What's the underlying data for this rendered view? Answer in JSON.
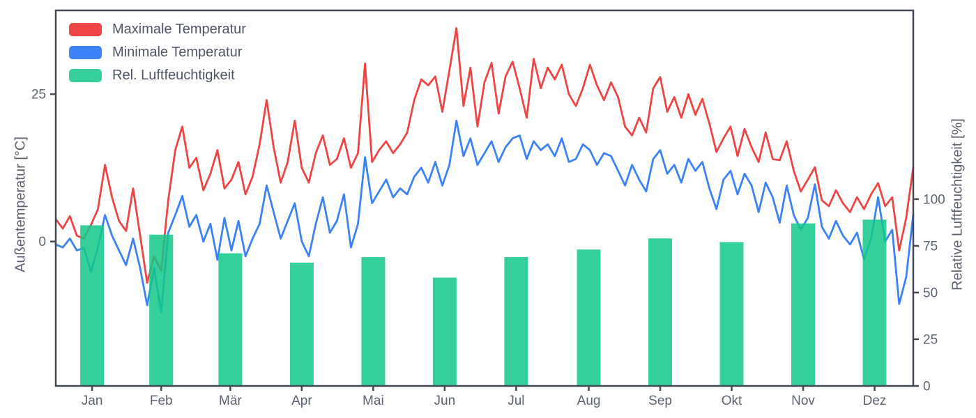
{
  "chart_data": {
    "type": "line+bar",
    "title": "",
    "legend_position": "upper-left",
    "grid": false,
    "months": [
      "Jan",
      "Feb",
      "Mär",
      "Apr",
      "Mai",
      "Jun",
      "Jul",
      "Aug",
      "Sep",
      "Okt",
      "Nov",
      "Dez"
    ],
    "axes": {
      "left": {
        "label": "Außentemperatur [°C]",
        "ticks": [
          0,
          25
        ],
        "range": [
          -24.5,
          39.2
        ]
      },
      "right": {
        "label": "Relative Luftfeuchtigkeit [%]",
        "ticks": [
          0,
          25,
          50,
          75,
          100
        ],
        "range": [
          0,
          201
        ]
      },
      "bottom": {
        "labels": [
          "Jan",
          "Feb",
          "Mär",
          "Apr",
          "Mai",
          "Jun",
          "Jul",
          "Aug",
          "Sep",
          "Okt",
          "Nov",
          "Dez"
        ]
      }
    },
    "series": [
      {
        "name": "Maximale Temperatur",
        "type": "line",
        "axis": "temp",
        "color": "#ef4444",
        "step_days": 3,
        "values": [
          3.8,
          2.2,
          4.3,
          1.0,
          0.5,
          2.8,
          5.5,
          13.0,
          7.5,
          3.5,
          1.8,
          9.0,
          1.0,
          -7.0,
          -2.5,
          -5.0,
          7.0,
          15.5,
          19.5,
          12.5,
          14.2,
          8.7,
          11.5,
          15.5,
          9.0,
          10.5,
          13.5,
          8.0,
          11.0,
          16.5,
          24.0,
          16.0,
          10.0,
          13.5,
          20.5,
          12.5,
          10.0,
          15.0,
          18.0,
          13.0,
          14.0,
          17.5,
          12.5,
          15.0,
          30.2,
          13.5,
          15.5,
          17.0,
          15.0,
          16.5,
          18.5,
          24.0,
          27.5,
          26.5,
          28.0,
          22.0,
          29.0,
          36.2,
          23.0,
          29.5,
          19.5,
          27.0,
          30.3,
          21.7,
          28.0,
          30.5,
          26.0,
          21.0,
          31.0,
          26.0,
          29.5,
          27.5,
          30.0,
          25.0,
          23.0,
          26.0,
          30.0,
          26.5,
          24.0,
          27.0,
          24.5,
          19.5,
          18.0,
          21.0,
          18.5,
          26.0,
          27.9,
          22.0,
          24.5,
          21.0,
          25.0,
          21.5,
          24.2,
          20.0,
          15.2,
          17.5,
          19.5,
          14.5,
          19.1,
          16.0,
          13.5,
          18.5,
          14.0,
          13.8,
          17.0,
          12.0,
          8.5,
          10.5,
          12.6,
          7.0,
          6.0,
          8.7,
          6.5,
          5.0,
          7.5,
          5.5,
          8.0,
          9.9,
          6.0,
          7.5,
          -1.5,
          4.0,
          12.6
        ]
      },
      {
        "name": "Minimale Temperatur",
        "type": "line",
        "axis": "temp",
        "color": "#3b82f6",
        "step_days": 3,
        "values": [
          -0.5,
          -1.0,
          0.5,
          -1.5,
          -1.1,
          -5.1,
          -1.0,
          4.5,
          1.0,
          -1.5,
          -4.0,
          0.5,
          -4.5,
          -10.8,
          -4.5,
          -12.0,
          1.5,
          4.5,
          7.7,
          2.5,
          4.5,
          0.0,
          3.0,
          -3.1,
          4.0,
          -1.5,
          3.5,
          -2.5,
          0.5,
          3.0,
          9.5,
          5.0,
          0.5,
          3.5,
          6.5,
          0.0,
          -2.5,
          3.0,
          7.5,
          1.5,
          3.5,
          8.0,
          -1.0,
          3.0,
          14.3,
          6.5,
          8.5,
          10.5,
          7.5,
          9.0,
          8.0,
          11.0,
          12.5,
          10.0,
          13.5,
          9.5,
          13.0,
          20.5,
          14.5,
          17.5,
          13.0,
          15.0,
          17.0,
          13.5,
          16.0,
          17.5,
          18.0,
          14.0,
          17.0,
          15.5,
          16.5,
          14.5,
          17.5,
          13.5,
          14.0,
          16.5,
          15.5,
          13.0,
          15.0,
          14.5,
          12.0,
          9.5,
          13.0,
          10.5,
          8.5,
          14.0,
          15.5,
          11.5,
          13.0,
          10.0,
          14.0,
          12.0,
          13.5,
          9.0,
          5.5,
          10.5,
          12.0,
          8.0,
          11.5,
          9.5,
          5.0,
          10.0,
          7.5,
          3.2,
          9.5,
          4.5,
          2.0,
          4.0,
          9.7,
          2.5,
          0.5,
          3.5,
          1.0,
          -0.5,
          1.5,
          -3.0,
          0.5,
          7.5,
          0.0,
          2.0,
          -10.6,
          -6.0,
          4.6
        ]
      },
      {
        "name": "Rel. Luftfeuchtigkeit",
        "type": "bar",
        "axis": "humidity",
        "color": "#12c888",
        "opacity": 0.85,
        "values": [
          86,
          81,
          71,
          66,
          69,
          58,
          69,
          73,
          79,
          77,
          87,
          89
        ]
      }
    ],
    "style": {
      "spine_color": "#424854",
      "tick_text_color": "#5b6270",
      "legend_text_color": "#4d5464",
      "background": "#ffffff"
    }
  }
}
